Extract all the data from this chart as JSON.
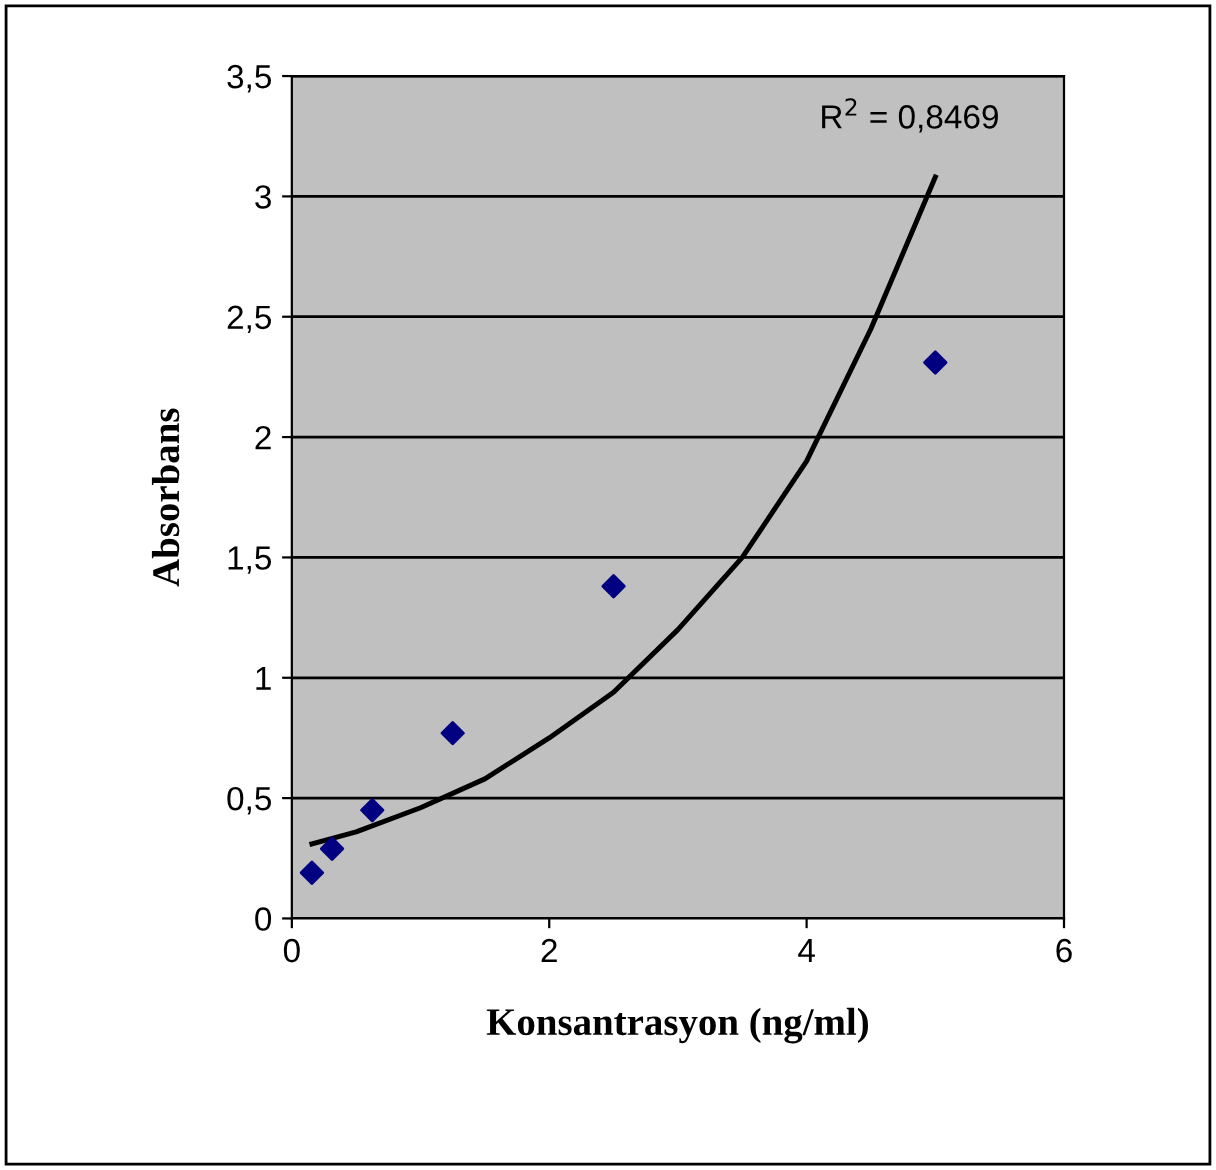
{
  "chart_data": {
    "type": "scatter",
    "xlabel": "Konsantrasyon (ng/ml)",
    "ylabel": "Absorbans",
    "x": [
      0.156,
      0.3125,
      0.625,
      1.25,
      2.5,
      5
    ],
    "series": [
      {
        "color": "#000080",
        "marker": "diamond",
        "values": [
          0.19,
          0.29,
          0.45,
          0.77,
          1.38,
          2.31
        ]
      },
      {
        "type": "line",
        "color": "#000000",
        "marker": "none",
        "x": [
          0.156,
          0.5,
          1,
          1.5,
          2,
          2.5,
          3,
          3.5,
          4,
          4.5,
          5
        ],
        "values": [
          0.31,
          0.36,
          0.46,
          0.58,
          0.75,
          0.94,
          1.2,
          1.5,
          1.9,
          2.45,
          3.08
        ]
      }
    ],
    "annotations": [
      "R$^{2}$ = 0,8469"
    ],
    "xlim": [
      0,
      6
    ],
    "xticks": [
      0,
      2,
      4,
      6
    ],
    "ylim": [
      0,
      3.5
    ],
    "yticks": [
      0,
      {
        "value": 0.5,
        "label": "0,5"
      },
      1,
      {
        "value": 1.5,
        "label": "1,5"
      },
      2,
      {
        "value": 2.5,
        "label": "2,5"
      },
      3,
      {
        "value": 3.5,
        "label": "3,5"
      }
    ],
    "grid": "y",
    "legend": false
  }
}
